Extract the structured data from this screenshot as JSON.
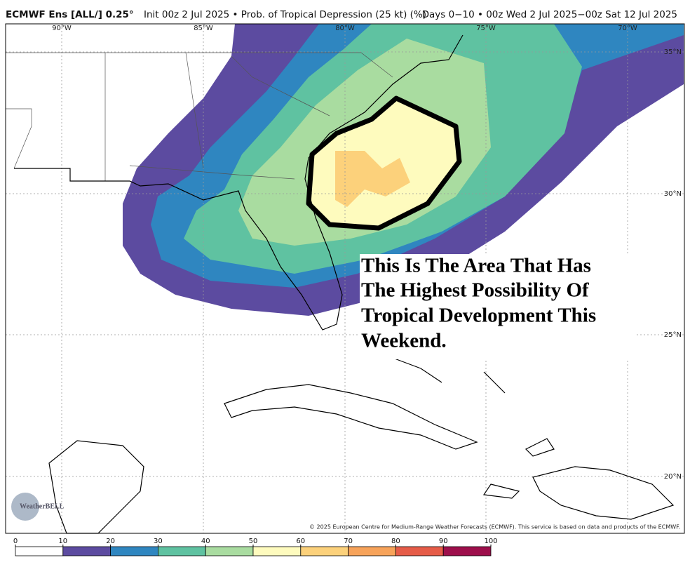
{
  "header": {
    "title_bold": "ECMWF Ens [ALL/] 0.25°",
    "title_rest": "Init 00z 2 Jul 2025 • Prob. of Tropical Depression (25 kt) (%)",
    "valid": "Days 0−10 • 00z Wed 2 Jul 2025−00z Sat 12 Jul 2025"
  },
  "map": {
    "lon_labels": [
      "90°W",
      "85°W",
      "80°W",
      "75°W",
      "70°W"
    ],
    "lat_labels": [
      "35°N",
      "30°N",
      "25°N",
      "20°N"
    ],
    "annotation": [
      "This Is The Area That Has",
      "The Highest Possibility Of",
      "Tropical Development This",
      "Weekend."
    ],
    "logo": "WeatherBELL",
    "credit": "© 2025 European Centre for Medium-Range Weather Forecasts (ECMWF). This service is based on data and products of the ECMWF."
  },
  "colorbar": {
    "ticks": [
      0,
      10,
      20,
      30,
      40,
      50,
      60,
      70,
      80,
      90,
      100
    ],
    "colors": [
      "#ffffff",
      "#5c4ba0",
      "#2f86c0",
      "#5fc2a1",
      "#a9dca0",
      "#fefbbe",
      "#fcd17b",
      "#f7a35a",
      "#e65c48",
      "#9d0f4b"
    ]
  }
}
